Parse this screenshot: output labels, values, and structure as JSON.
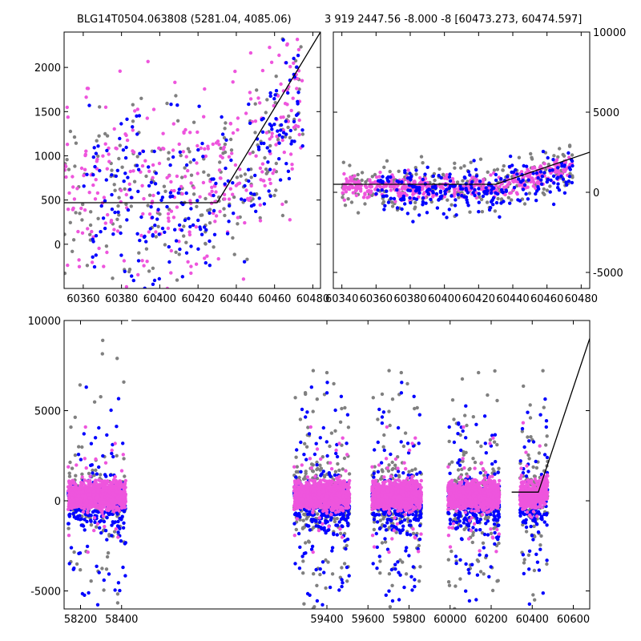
{
  "titles": {
    "left": "BLG14T0504.063808 (5281.04, 4085.06)",
    "right": "3 919 2447.56 -8.000 -8 [60473.273, 60474.597]"
  },
  "colors": {
    "gray": "#808080",
    "blue": "#0000ff",
    "magenta": "#ee55dd",
    "line": "#000000"
  },
  "chart_data": [
    {
      "type": "scatter",
      "title": "BLG14T0504.063808 (5281.04, 4085.06)",
      "xlim": [
        60350,
        60484
      ],
      "ylim": [
        -500,
        2400
      ],
      "xticks": [
        60360,
        60380,
        60400,
        60420,
        60440,
        60460,
        60480
      ],
      "yticks": [
        0,
        500,
        1000,
        1500,
        2000
      ],
      "y_axis_side": "left",
      "model_line": {
        "x": [
          60350,
          60430,
          60484
        ],
        "y": [
          470,
          470,
          2400
        ]
      },
      "series": [
        {
          "color": "gray",
          "x_range": [
            60350,
            60475
          ],
          "y_center": 500,
          "y_spread": 500,
          "count": 220,
          "trend": true
        },
        {
          "color": "magenta",
          "x_range": [
            60350,
            60475
          ],
          "y_center": 600,
          "y_spread": 550,
          "count": 320,
          "trend": true
        },
        {
          "color": "blue",
          "x_range": [
            60360,
            60475
          ],
          "y_center": 450,
          "y_spread": 450,
          "count": 230,
          "trend": true
        }
      ]
    },
    {
      "type": "scatter",
      "xlim": [
        60335,
        60485
      ],
      "ylim": [
        -6000,
        10000
      ],
      "xticks": [
        60340,
        60360,
        60380,
        60400,
        60420,
        60440,
        60460,
        60480
      ],
      "yticks": [
        -5000,
        0,
        5000,
        10000
      ],
      "y_axis_side": "right",
      "model_line": {
        "x": [
          60335,
          60430,
          60485
        ],
        "y": [
          500,
          500,
          2500
        ]
      },
      "series": [
        {
          "color": "gray",
          "x_range": [
            60340,
            60475
          ],
          "y_center": 400,
          "y_spread": 800,
          "count": 240,
          "trend": true
        },
        {
          "color": "magenta",
          "x_range": [
            60340,
            60475
          ],
          "y_center": 350,
          "y_spread": 350,
          "count": 420,
          "trend": true
        },
        {
          "color": "blue",
          "x_range": [
            60360,
            60475
          ],
          "y_center": 0,
          "y_spread": 700,
          "count": 260,
          "trend": true
        }
      ]
    },
    {
      "type": "scatter",
      "xlim": [
        58120,
        60680
      ],
      "ylim": [
        -6000,
        10000
      ],
      "xticks": [
        58200,
        58400,
        59400,
        59600,
        59800,
        60000,
        60200,
        60400,
        60600
      ],
      "yticks": [
        -5000,
        0,
        5000,
        10000
      ],
      "y_axis_side": "left",
      "axis_break_x": 58440,
      "model_line": {
        "x": [
          60300,
          60430,
          60680
        ],
        "y": [
          480,
          480,
          9000
        ]
      },
      "seasons": [
        {
          "x_range": [
            58140,
            58420
          ],
          "gray": 160,
          "magenta": 900,
          "blue": 260
        },
        {
          "x_range": [
            59240,
            59510
          ],
          "gray": 260,
          "magenta": 1000,
          "blue": 320
        },
        {
          "x_range": [
            59620,
            59860
          ],
          "gray": 200,
          "magenta": 900,
          "blue": 300
        },
        {
          "x_range": [
            59990,
            60240
          ],
          "gray": 220,
          "magenta": 900,
          "blue": 300
        },
        {
          "x_range": [
            60340,
            60475
          ],
          "gray": 120,
          "magenta": 380,
          "blue": 160
        }
      ]
    }
  ]
}
